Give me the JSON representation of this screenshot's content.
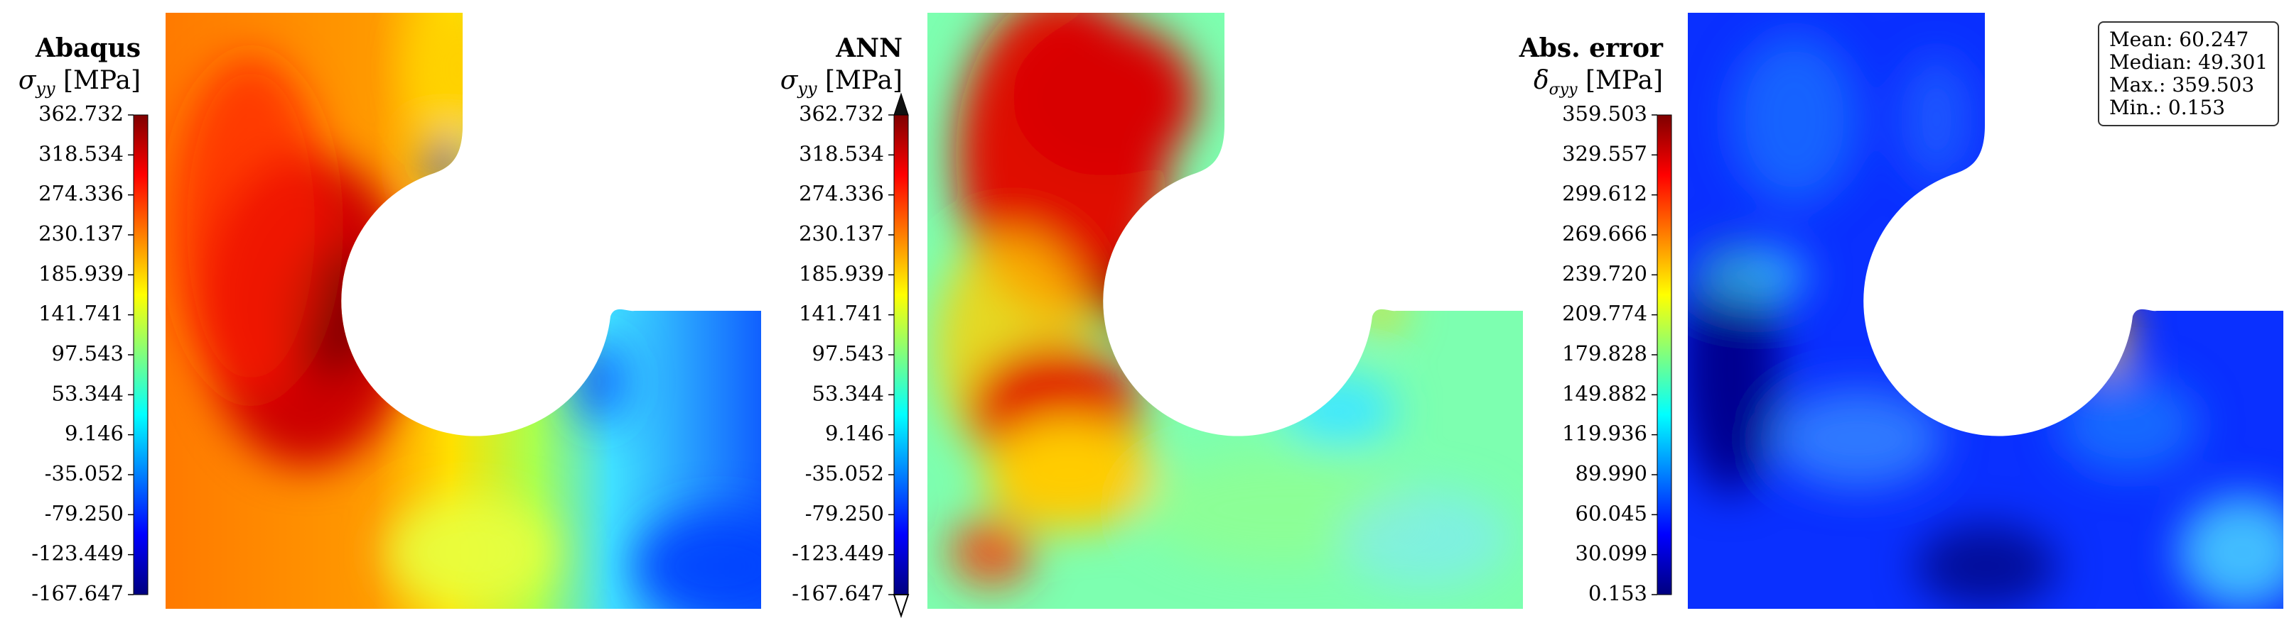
{
  "colors": {
    "jet": [
      "#00007f",
      "#0000ff",
      "#007fff",
      "#00ffff",
      "#7fff7f",
      "#ffff00",
      "#ff7f00",
      "#ff0000",
      "#7f0000"
    ],
    "background": "#ffffff"
  },
  "panels": [
    {
      "title": "Abaqus",
      "subtitle_symbol": "σ",
      "subtitle_subscript": "yy",
      "subtitle_unit": "[MPa]",
      "field": "gradient",
      "extend_arrows": false
    },
    {
      "title": "ANN",
      "subtitle_symbol": "σ",
      "subtitle_subscript": "yy",
      "subtitle_unit": "[MPa]",
      "field": "prediction",
      "extend_arrows": true
    },
    {
      "title": "Abs. error",
      "subtitle_symbol": "δ",
      "subtitle_subscript": "σyy",
      "subtitle_unit": "[MPa]",
      "field": "error",
      "extend_arrows": false
    }
  ],
  "chart_data": [
    {
      "type": "heatmap",
      "title": "Abaqus",
      "colorbar_label": "σyy [MPa]",
      "colormap": "jet",
      "colorbar_ticks": [
        "362.732",
        "318.534",
        "274.336",
        "230.137",
        "185.939",
        "141.741",
        "97.543",
        "53.344",
        "9.146",
        "-35.052",
        "-79.250",
        "-123.449",
        "-167.647"
      ],
      "vmin": -167.647,
      "vmax": 362.732
    },
    {
      "type": "heatmap",
      "title": "ANN",
      "colorbar_label": "σyy [MPa]",
      "colormap": "jet",
      "colorbar_extend": "both",
      "colorbar_ticks": [
        "362.732",
        "318.534",
        "274.336",
        "230.137",
        "185.939",
        "141.741",
        "97.543",
        "53.344",
        "9.146",
        "-35.052",
        "-79.250",
        "-123.449",
        "-167.647"
      ],
      "vmin": -167.647,
      "vmax": 362.732
    },
    {
      "type": "heatmap",
      "title": "Abs. error",
      "colorbar_label": "δσyy [MPa]",
      "colormap": "jet",
      "colorbar_ticks": [
        "359.503",
        "329.557",
        "299.612",
        "269.666",
        "239.720",
        "209.774",
        "179.828",
        "149.882",
        "119.936",
        "89.990",
        "60.045",
        "30.099",
        "0.153"
      ],
      "vmin": 0.153,
      "vmax": 359.503,
      "statistics": {
        "mean": 60.247,
        "median": 49.301,
        "max": 359.503,
        "min": 0.153
      }
    }
  ],
  "stats_box": {
    "mean_label": "Mean: 60.247",
    "median_label": "Median: 49.301",
    "max_label": "Max.: 359.503",
    "min_label": "Min.: 0.153"
  }
}
